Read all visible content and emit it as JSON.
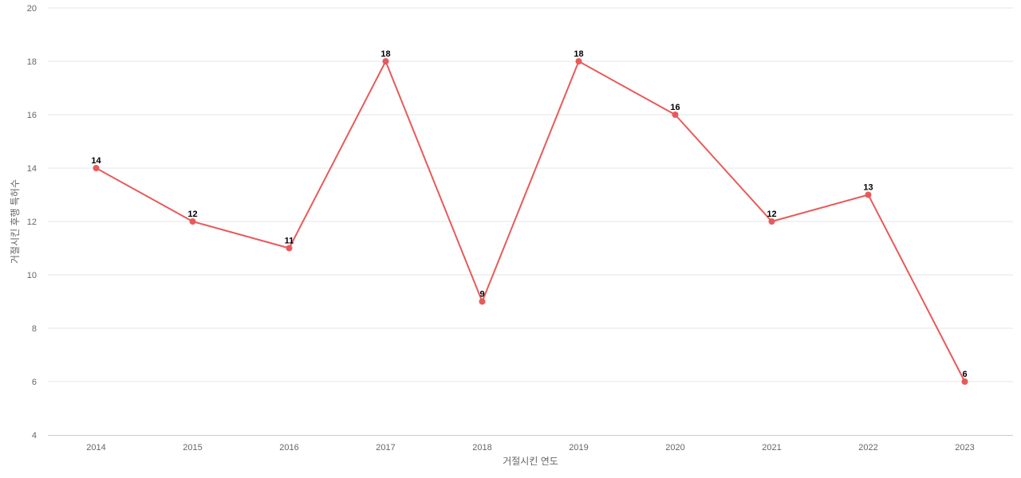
{
  "chart_data": {
    "type": "line",
    "title": "",
    "xlabel": "거절시킨 연도",
    "ylabel": "거절시킨 후행 특허수",
    "categories": [
      "2014",
      "2015",
      "2016",
      "2017",
      "2018",
      "2019",
      "2020",
      "2021",
      "2022",
      "2023"
    ],
    "series": [
      {
        "values": [
          14,
          12,
          11,
          18,
          9,
          18,
          16,
          12,
          13,
          6
        ],
        "color": "#e85a5a"
      }
    ],
    "ylim": [
      4,
      20
    ],
    "yticks": [
      4,
      6,
      8,
      10,
      12,
      14,
      16,
      18,
      20
    ],
    "grid": true,
    "legend": "none",
    "data_labels": true
  }
}
